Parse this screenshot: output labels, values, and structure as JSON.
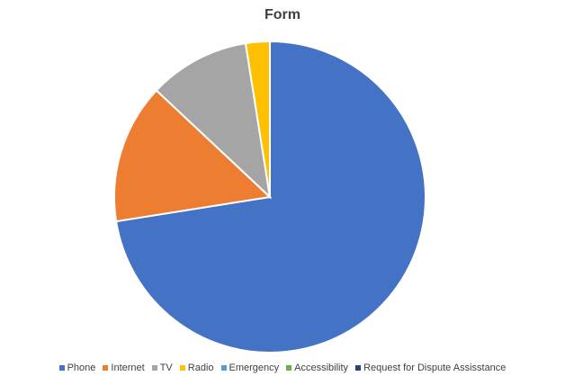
{
  "chart_data": {
    "type": "pie",
    "title": "Form",
    "categories": [
      "Phone",
      "Internet",
      "TV",
      "Radio",
      "Emergency",
      "Accessibility",
      "Request for Dispute Assisstance"
    ],
    "values": [
      72.5,
      14.5,
      10.5,
      2.5,
      0,
      0,
      0
    ],
    "colors": [
      "#4472C4",
      "#ED7D31",
      "#A5A5A5",
      "#FFC000",
      "#5B9BD5",
      "#70AD47",
      "#264478"
    ],
    "legend_position": "bottom"
  }
}
